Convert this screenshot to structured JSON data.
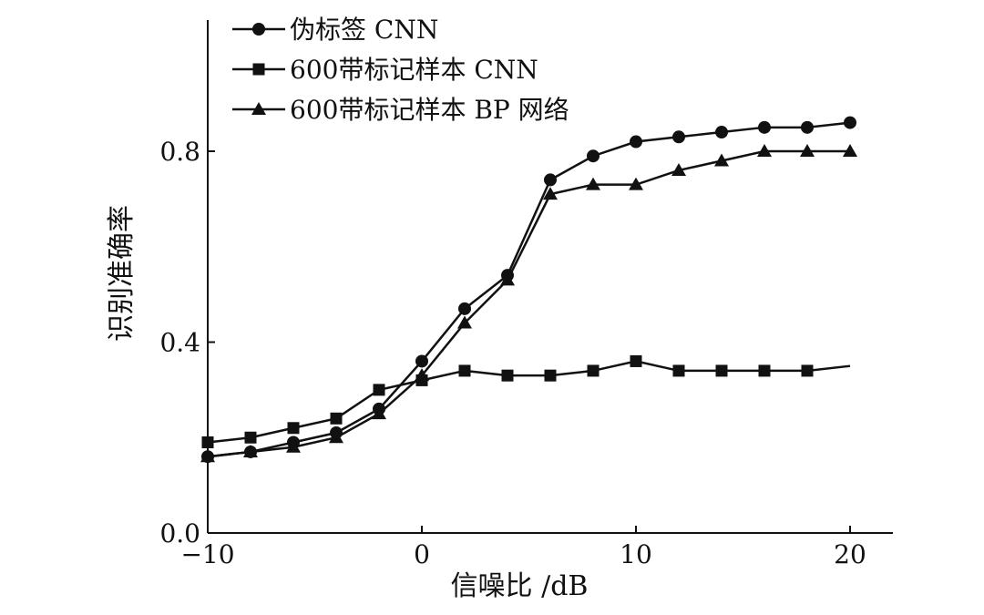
{
  "chart_data": {
    "type": "line",
    "xlabel": "信噪比 /dB",
    "ylabel": "识别准确率",
    "xlim": [
      -10,
      21
    ],
    "ylim": [
      0,
      1.07
    ],
    "xticks": [
      -10,
      0,
      10,
      20
    ],
    "xtick_labels": [
      "−10",
      "0",
      "10",
      "20"
    ],
    "yticks": [
      0.0,
      0.4,
      0.8
    ],
    "ytick_labels": [
      "0.0",
      "0.4",
      "0.8"
    ],
    "grid": false,
    "legend_position": "top-left",
    "x": [
      -10,
      -8,
      -6,
      -4,
      -2,
      0,
      2,
      4,
      6,
      8,
      10,
      12,
      14,
      16,
      18,
      20
    ],
    "series": [
      {
        "name": "伪标签 CNN",
        "marker": "circle",
        "values": [
          0.16,
          0.17,
          0.19,
          0.21,
          0.26,
          0.36,
          0.47,
          0.54,
          0.74,
          0.79,
          0.82,
          0.83,
          0.84,
          0.85,
          0.85,
          0.86
        ]
      },
      {
        "name": "600带标记样本 CNN",
        "marker": "square",
        "values": [
          0.19,
          0.2,
          0.22,
          0.24,
          0.3,
          0.32,
          0.34,
          0.33,
          0.33,
          0.34,
          0.36,
          0.34,
          0.34,
          0.34,
          0.34,
          0.35
        ]
      },
      {
        "name": "600带标记样本 BP 网络",
        "marker": "triangle",
        "values": [
          0.16,
          0.17,
          0.18,
          0.2,
          0.25,
          0.33,
          0.44,
          0.53,
          0.71,
          0.73,
          0.73,
          0.76,
          0.78,
          0.8,
          0.8,
          0.8
        ]
      }
    ]
  }
}
